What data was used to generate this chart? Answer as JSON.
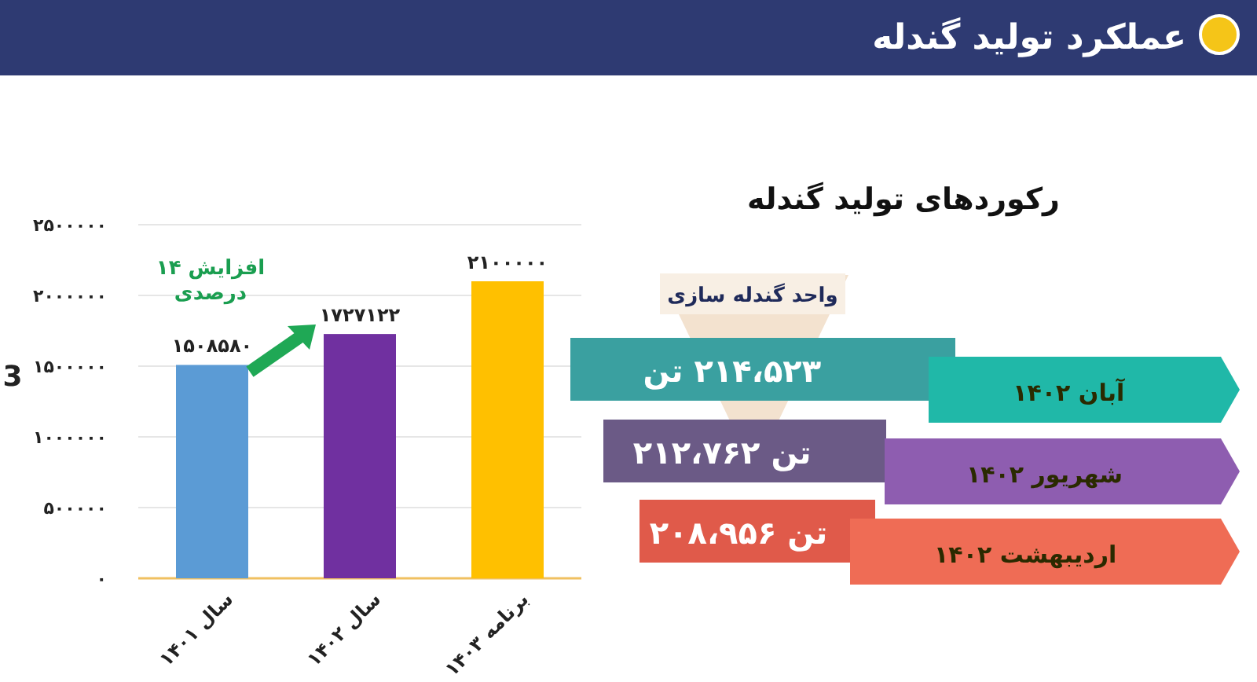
{
  "chart_data": [
    {
      "type": "other",
      "title": "عملکرد تولید گندله"
    },
    {
      "type": "bar",
      "ylabel": "3",
      "categories": [
        "سال ۱۴۰۱",
        "سال ۱۴۰۲",
        "برنامه ۱۴۰۳"
      ],
      "values": [
        1508580,
        1727122,
        2100000
      ],
      "colors": [
        "#5b9bd5",
        "#7030a0",
        "#ffc000"
      ],
      "value_labels": [
        "۱۵۰۸۵۸۰",
        "۱۷۲۷۱۲۲",
        "۲۱۰۰۰۰۰"
      ],
      "ylim": [
        0,
        2500000
      ],
      "yticks": [
        {
          "value": 0,
          "label": "۰"
        },
        {
          "value": 500000,
          "label": "۵۰۰۰۰۰"
        },
        {
          "value": 1000000,
          "label": "۱۰۰۰۰۰۰"
        },
        {
          "value": 1500000,
          "label": "۱۵۰۰۰۰۰"
        },
        {
          "value": 2000000,
          "label": "۲۰۰۰۰۰۰"
        },
        {
          "value": 2500000,
          "label": "۲۵۰۰۰۰۰"
        }
      ],
      "grid": "y",
      "annotations": [
        "افزایش ۱۴ درصدی"
      ]
    },
    {
      "type": "other",
      "title": "رکوردهای تولید گندله",
      "subtitle": "واحد گندله سازی",
      "annotations": [
        "۲۱۴،۵۲۳ تن",
        "آبان ۱۴۰۲",
        "تن ۲۱۲،۷۶۲",
        "شهریور ۱۴۰۲",
        "تن ۲۰۸،۹۵۶",
        "اردیبهشت ۱۴۰۲"
      ]
    }
  ]
}
